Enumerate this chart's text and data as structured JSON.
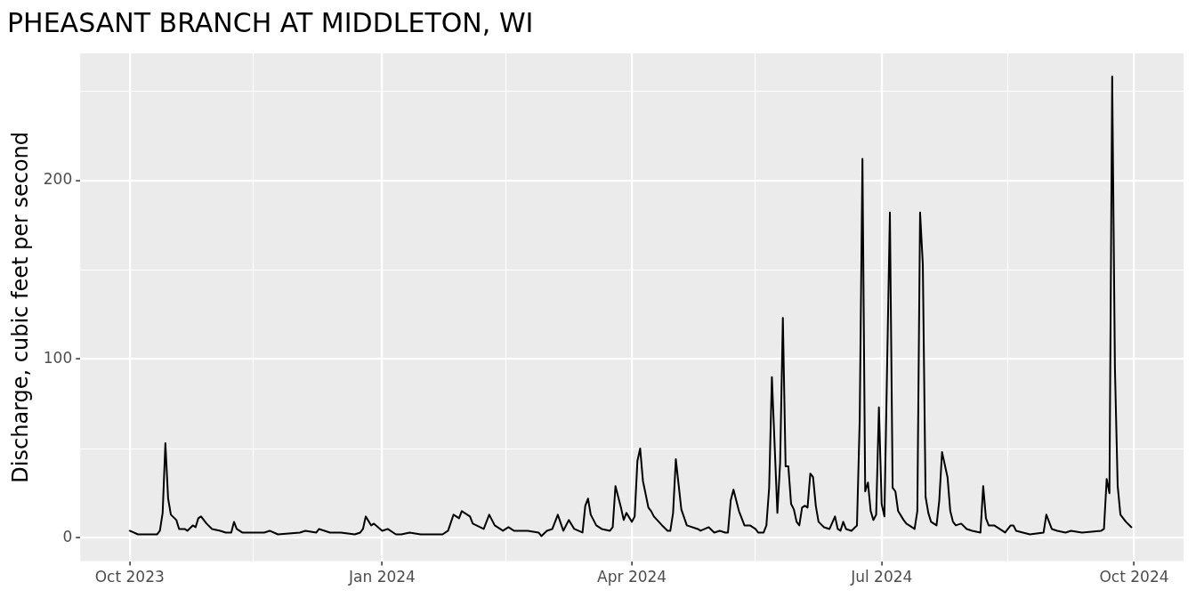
{
  "chart_data": {
    "type": "line",
    "title": "PHEASANT BRANCH AT MIDDLETON, WI",
    "ylabel": "Discharge, cubic feet per second",
    "x": [
      "2023-10-01",
      "2023-10-04",
      "2023-10-11",
      "2023-10-12",
      "2023-10-13",
      "2023-10-14",
      "2023-10-15",
      "2023-10-16",
      "2023-10-18",
      "2023-10-19",
      "2023-10-21",
      "2023-10-22",
      "2023-10-24",
      "2023-10-25",
      "2023-10-26",
      "2023-10-27",
      "2023-10-29",
      "2023-10-31",
      "2023-11-03",
      "2023-11-05",
      "2023-11-07",
      "2023-11-08",
      "2023-11-09",
      "2023-11-11",
      "2023-11-19",
      "2023-11-21",
      "2023-11-24",
      "2023-12-02",
      "2023-12-04",
      "2023-12-08",
      "2023-12-09",
      "2023-12-13",
      "2023-12-17",
      "2023-12-22",
      "2023-12-24",
      "2023-12-25",
      "2023-12-26",
      "2023-12-28",
      "2023-12-29",
      "2024-01-01",
      "2024-01-03",
      "2024-01-06",
      "2024-01-08",
      "2024-01-11",
      "2024-01-15",
      "2024-01-23",
      "2024-01-25",
      "2024-01-27",
      "2024-01-29",
      "2024-01-30",
      "2024-02-02",
      "2024-02-03",
      "2024-02-07",
      "2024-02-09",
      "2024-02-11",
      "2024-02-14",
      "2024-02-16",
      "2024-02-18",
      "2024-02-23",
      "2024-02-27",
      "2024-02-28",
      "2024-03-01",
      "2024-03-03",
      "2024-03-05",
      "2024-03-07",
      "2024-03-09",
      "2024-03-11",
      "2024-03-14",
      "2024-03-15",
      "2024-03-16",
      "2024-03-17",
      "2024-03-19",
      "2024-03-21",
      "2024-03-24",
      "2024-03-25",
      "2024-03-26",
      "2024-03-28",
      "2024-03-29",
      "2024-03-30",
      "2024-04-01",
      "2024-04-02",
      "2024-04-03",
      "2024-04-04",
      "2024-04-05",
      "2024-04-07",
      "2024-04-08",
      "2024-04-09",
      "2024-04-12",
      "2024-04-14",
      "2024-04-15",
      "2024-04-16",
      "2024-04-17",
      "2024-04-19",
      "2024-04-21",
      "2024-04-25",
      "2024-04-26",
      "2024-04-29",
      "2024-05-01",
      "2024-05-03",
      "2024-05-05",
      "2024-05-06",
      "2024-05-07",
      "2024-05-08",
      "2024-05-10",
      "2024-05-12",
      "2024-05-14",
      "2024-05-16",
      "2024-05-17",
      "2024-05-19",
      "2024-05-20",
      "2024-05-21",
      "2024-05-22",
      "2024-05-24",
      "2024-05-25",
      "2024-05-26",
      "2024-05-27",
      "2024-05-28",
      "2024-05-29",
      "2024-05-30",
      "2024-05-31",
      "2024-06-01",
      "2024-06-02",
      "2024-06-03",
      "2024-06-04",
      "2024-06-05",
      "2024-06-06",
      "2024-06-07",
      "2024-06-08",
      "2024-06-10",
      "2024-06-12",
      "2024-06-14",
      "2024-06-15",
      "2024-06-16",
      "2024-06-17",
      "2024-06-18",
      "2024-06-20",
      "2024-06-22",
      "2024-06-23",
      "2024-06-24",
      "2024-06-25",
      "2024-06-26",
      "2024-06-27",
      "2024-06-28",
      "2024-06-29",
      "2024-06-30",
      "2024-07-01",
      "2024-07-02",
      "2024-07-04",
      "2024-07-05",
      "2024-07-06",
      "2024-07-07",
      "2024-07-09",
      "2024-07-10",
      "2024-07-13",
      "2024-07-14",
      "2024-07-15",
      "2024-07-16",
      "2024-07-17",
      "2024-07-18",
      "2024-07-19",
      "2024-07-21",
      "2024-07-22",
      "2024-07-23",
      "2024-07-25",
      "2024-07-26",
      "2024-07-27",
      "2024-07-28",
      "2024-07-30",
      "2024-08-01",
      "2024-08-03",
      "2024-08-06",
      "2024-08-07",
      "2024-08-08",
      "2024-08-09",
      "2024-08-11",
      "2024-08-15",
      "2024-08-17",
      "2024-08-18",
      "2024-08-19",
      "2024-08-24",
      "2024-08-29",
      "2024-08-30",
      "2024-09-01",
      "2024-09-03",
      "2024-09-06",
      "2024-09-08",
      "2024-09-12",
      "2024-09-19",
      "2024-09-20",
      "2024-09-21",
      "2024-09-22",
      "2024-09-23",
      "2024-09-24",
      "2024-09-25",
      "2024-09-26",
      "2024-09-28",
      "2024-09-30"
    ],
    "series": [
      {
        "color": "#000000",
        "values": [
          4,
          2,
          2,
          4,
          14,
          53,
          22,
          13,
          10,
          5,
          5,
          4,
          7,
          6,
          11,
          12,
          8,
          5,
          4,
          3,
          3,
          9,
          5,
          3,
          3,
          4,
          2,
          3,
          4,
          3,
          5,
          3,
          3,
          2,
          3,
          5,
          12,
          7,
          8,
          4,
          5,
          2,
          2,
          3,
          2,
          2,
          4,
          13,
          11,
          15,
          12,
          8,
          5,
          13,
          7,
          4,
          6,
          4,
          4,
          3,
          1,
          4,
          5,
          13,
          4,
          10,
          5,
          3,
          18,
          22,
          13,
          7,
          5,
          4,
          6,
          29,
          17,
          10,
          14,
          9,
          12,
          43,
          50,
          32,
          17,
          15,
          12,
          7,
          4,
          4,
          14,
          44,
          16,
          7,
          5,
          4,
          6,
          3,
          4,
          3,
          3,
          21,
          27,
          15,
          7,
          7,
          5,
          3,
          3,
          7,
          28,
          90,
          14,
          42,
          123,
          40,
          40,
          19,
          16,
          9,
          7,
          17,
          18,
          17,
          36,
          34,
          18,
          9,
          6,
          5,
          12,
          5,
          4,
          9,
          5,
          4,
          7,
          66,
          212,
          26,
          31,
          15,
          10,
          13,
          73,
          19,
          12,
          182,
          28,
          26,
          15,
          10,
          8,
          5,
          15,
          182,
          153,
          23,
          14,
          9,
          7,
          21,
          48,
          34,
          15,
          9,
          7,
          8,
          5,
          4,
          3,
          29,
          11,
          7,
          7,
          3,
          7,
          7,
          4,
          2,
          3,
          13,
          5,
          4,
          3,
          4,
          3,
          4,
          5,
          33,
          25,
          258,
          95,
          29,
          13,
          9,
          6
        ]
      }
    ],
    "xlim": [
      "2023-09-13",
      "2024-10-19"
    ],
    "xticks": [
      {
        "value": "2023-10-01",
        "label": "Oct 2023"
      },
      {
        "value": "2023-11-15",
        "label": null
      },
      {
        "value": "2024-01-01",
        "label": "Jan 2024"
      },
      {
        "value": "2024-02-15",
        "label": null
      },
      {
        "value": "2024-04-01",
        "label": "Apr 2024"
      },
      {
        "value": "2024-05-16",
        "label": null
      },
      {
        "value": "2024-07-01",
        "label": "Jul 2024"
      },
      {
        "value": "2024-08-16",
        "label": null
      },
      {
        "value": "2024-10-01",
        "label": "Oct 2024"
      }
    ],
    "ylim": [
      -13,
      271
    ],
    "yticks": [
      0,
      {
        "value": 50,
        "label": null
      },
      100,
      {
        "value": 150,
        "label": null
      },
      200,
      {
        "value": 250,
        "label": null
      }
    ],
    "grid": true,
    "line_style": "solid"
  }
}
